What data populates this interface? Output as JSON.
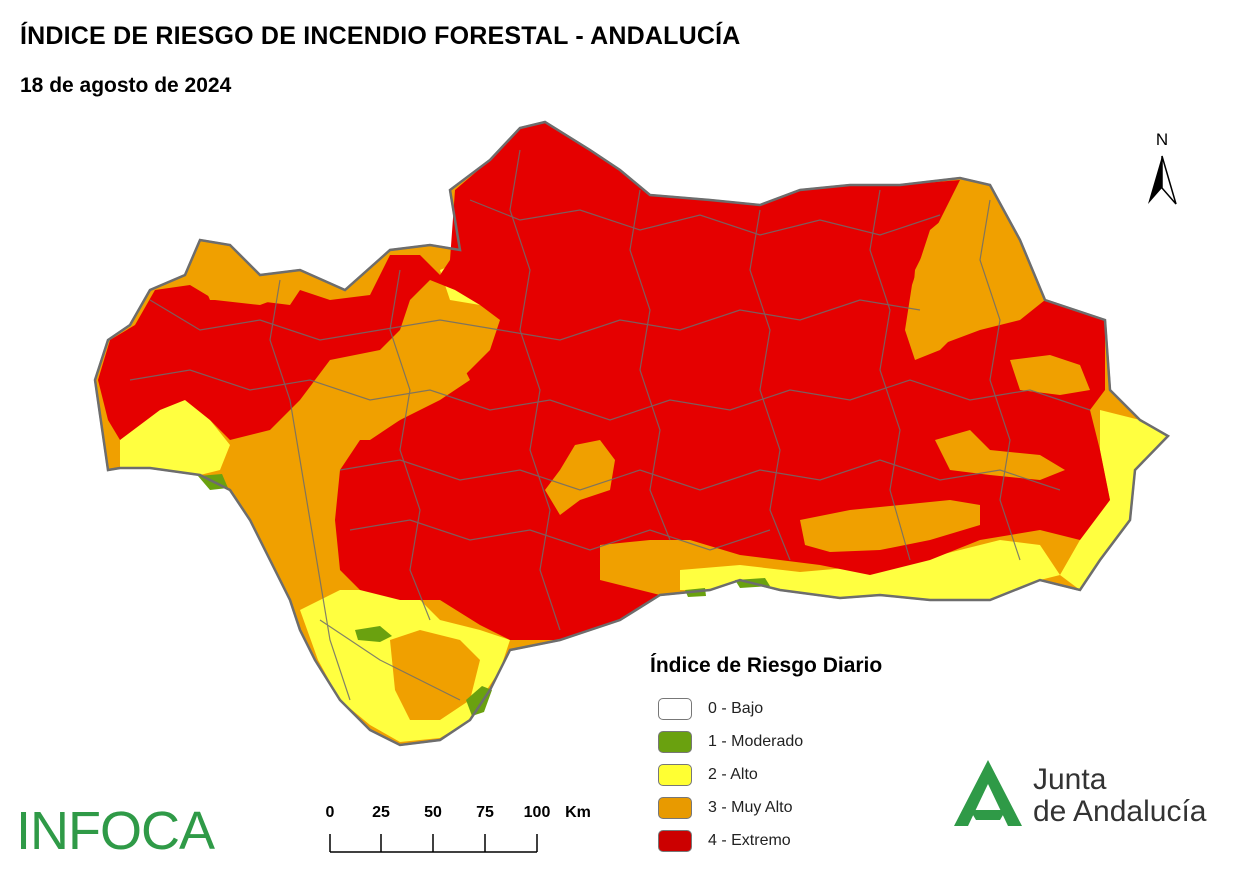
{
  "header": {
    "title": "ÍNDICE DE RIESGO DE INCENDIO FORESTAL - ANDALUCÍA",
    "date": "18 de agosto de 2024"
  },
  "north_arrow": {
    "label": "N"
  },
  "legend": {
    "title": "Índice de Riesgo Diario",
    "items": [
      {
        "label": "0 - Bajo",
        "color": "#ffffff"
      },
      {
        "label": "1 - Moderado",
        "color": "#6aa10f"
      },
      {
        "label": "2 - Alto",
        "color": "#ffff33"
      },
      {
        "label": "3 - Muy Alto",
        "color": "#e89a00"
      },
      {
        "label": "4 - Extremo",
        "color": "#cc0000"
      }
    ]
  },
  "scale": {
    "ticks": [
      "0",
      "25",
      "50",
      "75",
      "100"
    ],
    "unit": "Km"
  },
  "logos": {
    "left": "INFOCA",
    "right_line1": "Junta",
    "right_line2": "de Andalucía"
  },
  "colors": {
    "extremo": "#e50000",
    "muy_alto": "#f0a000",
    "alto": "#ffff40",
    "moderado": "#6aa10f",
    "border": "#6d6d6d",
    "junta_green": "#2f9a47"
  }
}
